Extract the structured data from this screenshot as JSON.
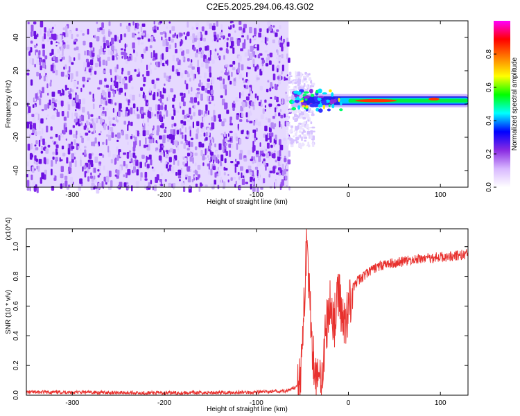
{
  "title": "C2E5.2025.294.06.43.G02",
  "chart_data": [
    {
      "type": "heatmap",
      "name": "spectrogram",
      "xlabel": "Height of straight line (km)",
      "ylabel": "Frequency (Hz)",
      "xlim": [
        -350,
        130
      ],
      "ylim": [
        -50,
        50
      ],
      "xticks": [
        -300,
        -200,
        -100,
        0,
        100
      ],
      "yticks": [
        -40,
        -20,
        0,
        20,
        40
      ],
      "noise_region_x": [
        -350,
        -65
      ],
      "signal_frequency_hz": 2,
      "colorbar": {
        "label": "Normalized spectral amplitude",
        "range": [
          0,
          1
        ],
        "ticks": [
          0.0,
          0.2,
          0.4,
          0.6,
          0.8
        ],
        "colors": [
          "#ffffff",
          "#d8b8ff",
          "#8a2be2",
          "#0000ff",
          "#00ffff",
          "#00ff00",
          "#ffff00",
          "#ff8000",
          "#ff0000",
          "#ff00ff"
        ]
      }
    },
    {
      "type": "line",
      "name": "snr",
      "xlabel": "Height of straight line (km)",
      "ylabel": "SNR (10 * v/v)",
      "y_multiplier": "(x10^4)",
      "xlim": [
        -350,
        130
      ],
      "ylim": [
        0,
        1.12
      ],
      "xticks": [
        -300,
        -200,
        -100,
        0,
        100
      ],
      "yticks": [
        0.0,
        0.2,
        0.4,
        0.6,
        0.8,
        1.0
      ],
      "color": "#e8312e",
      "series": [
        {
          "name": "SNR",
          "x": [
            -350,
            -300,
            -200,
            -100,
            -65,
            -58,
            -53,
            -50,
            -48,
            -46,
            -45,
            -43,
            -40,
            -36,
            -32,
            -28,
            -24,
            -20,
            -15,
            -10,
            -5,
            0,
            5,
            10,
            20,
            30,
            40,
            60,
            80,
            100,
            120,
            130
          ],
          "y": [
            0.02,
            0.02,
            0.015,
            0.02,
            0.03,
            0.05,
            0.1,
            0.3,
            0.6,
            0.95,
            1.1,
            0.75,
            0.4,
            0.15,
            0.08,
            0.2,
            0.45,
            0.6,
            0.5,
            0.7,
            0.45,
            0.6,
            0.72,
            0.77,
            0.82,
            0.86,
            0.88,
            0.9,
            0.92,
            0.93,
            0.94,
            0.95
          ]
        }
      ]
    }
  ]
}
